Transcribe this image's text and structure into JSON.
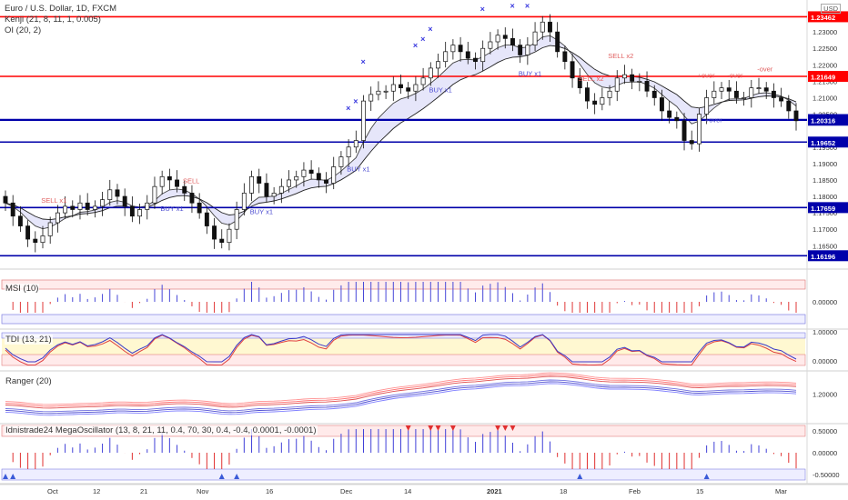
{
  "legend": {
    "symbol": "Euro / U.S. Dollar, 1D, FXCM",
    "kenji": "Kenji (21, 8, 11, 1, 0.005)",
    "oi": "OI (20, 2)",
    "currency": "USD"
  },
  "panes": {
    "msi": "MSI (10)",
    "tdi": "TDI (13, 21)",
    "ranger": "Ranger (20)",
    "mega": "Idnistrade24 MegaOscillator (13, 8, 21, 11, 0.4, 70, 30, 0.4, -0.4, 0.0001, -0.0001)"
  },
  "chart_data": {
    "type": "candlestick",
    "y_ticks": [
      "1.23000",
      "1.22500",
      "1.22000",
      "1.21500",
      "1.21000",
      "1.20500",
      "1.19500",
      "1.19000",
      "1.18500",
      "1.18000",
      "1.17500",
      "1.17000",
      "1.16500"
    ],
    "x_ticks": [
      "Oct",
      "12",
      "21",
      "Nov",
      "16",
      "Dec",
      "14",
      "2021",
      "18",
      "Feb",
      "15",
      "Mar"
    ],
    "levels": [
      {
        "value": 1.23462,
        "label": "1.23462",
        "color": "#ff0000"
      },
      {
        "value": 1.21649,
        "label": "1.21649",
        "color": "#ff0000"
      },
      {
        "value": 1.20336,
        "label": "1.20336",
        "color": "#0000aa",
        "note": "last price"
      },
      {
        "value": 1.20316,
        "label": "1.20316",
        "color": "#0000aa"
      },
      {
        "value": 1.19652,
        "label": "1.19652",
        "color": "#0000aa"
      },
      {
        "value": 1.17659,
        "label": "1.17659",
        "color": "#0000aa"
      },
      {
        "value": 1.16196,
        "label": "1.16196",
        "color": "#0000aa"
      }
    ],
    "close_series": [
      1.178,
      1.174,
      1.171,
      1.167,
      1.166,
      1.168,
      1.172,
      1.175,
      1.177,
      1.176,
      1.178,
      1.176,
      1.177,
      1.179,
      1.182,
      1.18,
      1.177,
      1.174,
      1.176,
      1.178,
      1.183,
      1.186,
      1.185,
      1.183,
      1.181,
      1.178,
      1.175,
      1.171,
      1.167,
      1.166,
      1.17,
      1.176,
      1.181,
      1.186,
      1.184,
      1.18,
      1.181,
      1.183,
      1.185,
      1.186,
      1.188,
      1.187,
      1.185,
      1.184,
      1.189,
      1.192,
      1.195,
      1.197,
      1.209,
      1.211,
      1.212,
      1.212,
      1.214,
      1.213,
      1.212,
      1.214,
      1.216,
      1.219,
      1.221,
      1.224,
      1.226,
      1.224,
      1.222,
      1.221,
      1.225,
      1.227,
      1.229,
      1.228,
      1.226,
      1.223,
      1.226,
      1.23,
      1.233,
      1.23,
      1.224,
      1.221,
      1.216,
      1.213,
      1.209,
      1.208,
      1.21,
      1.212,
      1.216,
      1.217,
      1.215,
      1.215,
      1.212,
      1.21,
      1.206,
      1.204,
      1.203,
      1.197,
      1.196,
      1.205,
      1.21,
      1.212,
      1.213,
      1.212,
      1.21,
      1.21,
      1.213,
      1.213,
      1.212,
      1.21,
      1.209,
      1.206,
      1.203
    ],
    "upper_labels": [
      "SELL x1",
      "SELL",
      "SELL x2",
      "SELL x2",
      "+over",
      "-over",
      "-over"
    ],
    "lower_labels": [
      "BUY x1",
      "BUY x1",
      "BUY x1",
      "BUY x1",
      "BUY x1",
      "+over"
    ],
    "msi_tick": "0.00000",
    "tdi_ticks": [
      "1.00000",
      "0.00000"
    ],
    "ranger_tick": "1.20000",
    "mega_ticks": [
      "0.50000",
      "0.00000",
      "-0.50000"
    ]
  }
}
